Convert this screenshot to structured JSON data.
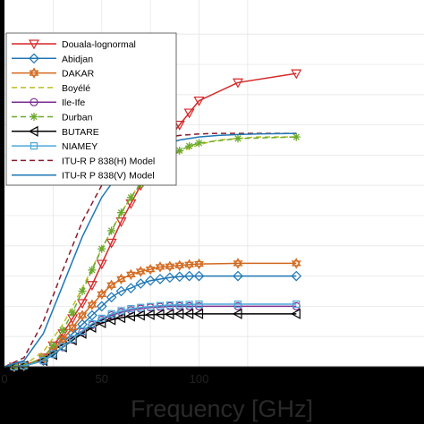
{
  "chart_data": {
    "type": "line",
    "title": "",
    "xlabel": "Frequency [GHz]",
    "ylabel": "",
    "xlim": [
      0,
      150
    ],
    "ylim": [
      0,
      11
    ],
    "x_ticks": [
      0,
      50,
      100
    ],
    "grid": true,
    "legend_position": "top-left",
    "series": [
      {
        "name": "Douala-lognormal",
        "color": "#d62728",
        "style": "solid",
        "marker": "triangle-down",
        "x": [
          5,
          10,
          20,
          25,
          30,
          35,
          40,
          45,
          50,
          55,
          60,
          65,
          70,
          75,
          80,
          85,
          90,
          95,
          100,
          120,
          150
        ],
        "y": [
          0,
          0.03,
          0.3,
          0.7,
          1.1,
          1.6,
          2.1,
          2.7,
          3.4,
          4.1,
          4.8,
          5.4,
          6.0,
          6.6,
          7.1,
          7.6,
          8.0,
          8.4,
          8.8,
          9.4,
          9.7
        ]
      },
      {
        "name": "Abidjan",
        "color": "#1f77b4",
        "style": "solid",
        "marker": "diamond",
        "x": [
          5,
          10,
          20,
          25,
          30,
          35,
          40,
          45,
          50,
          55,
          60,
          65,
          70,
          75,
          80,
          85,
          90,
          95,
          100,
          120,
          150
        ],
        "y": [
          0,
          0.03,
          0.2,
          0.5,
          0.8,
          1.1,
          1.4,
          1.7,
          2.0,
          2.3,
          2.5,
          2.6,
          2.75,
          2.85,
          2.9,
          2.95,
          2.98,
          3.0,
          3.0,
          3.0,
          3.0
        ]
      },
      {
        "name": "DAKAR",
        "color": "#d2691e",
        "style": "solid",
        "marker": "hexagram",
        "x": [
          5,
          10,
          20,
          25,
          30,
          35,
          40,
          45,
          50,
          55,
          60,
          65,
          70,
          75,
          80,
          85,
          90,
          95,
          100,
          120,
          150
        ],
        "y": [
          0,
          0.03,
          0.25,
          0.55,
          0.9,
          1.3,
          1.7,
          2.05,
          2.4,
          2.7,
          2.9,
          3.05,
          3.15,
          3.22,
          3.3,
          3.32,
          3.35,
          3.38,
          3.4,
          3.42,
          3.42
        ]
      },
      {
        "name": "Boyélé",
        "color": "#bcbd22",
        "style": "dashed",
        "marker": "none",
        "x": [
          0,
          10,
          20,
          30,
          40,
          50,
          60,
          70,
          80,
          90,
          100,
          110,
          120,
          130,
          150
        ],
        "y": [
          0,
          0.05,
          0.5,
          1.4,
          2.6,
          3.9,
          5.1,
          6.1,
          6.7,
          7.1,
          7.35,
          7.5,
          7.55,
          7.6,
          7.6
        ]
      },
      {
        "name": "Ile-Ife",
        "color": "#7b2d8e",
        "style": "solid",
        "marker": "circle",
        "x": [
          5,
          10,
          20,
          25,
          30,
          35,
          40,
          45,
          50,
          55,
          60,
          65,
          70,
          75,
          80,
          85,
          90,
          95,
          100,
          120,
          150
        ],
        "y": [
          0,
          0.03,
          0.2,
          0.42,
          0.65,
          0.9,
          1.15,
          1.38,
          1.55,
          1.7,
          1.8,
          1.87,
          1.92,
          1.96,
          1.98,
          2.0,
          2.0,
          2.0,
          2.0,
          2.0,
          2.0
        ]
      },
      {
        "name": "Durban",
        "color": "#6aaa2a",
        "style": "dashed",
        "marker": "asterisk",
        "x": [
          5,
          10,
          20,
          25,
          30,
          35,
          40,
          45,
          50,
          55,
          60,
          65,
          70,
          75,
          80,
          85,
          90,
          95,
          100,
          120,
          150
        ],
        "y": [
          0,
          0.03,
          0.3,
          0.7,
          1.2,
          1.8,
          2.5,
          3.2,
          3.9,
          4.5,
          5.1,
          5.6,
          6.05,
          6.4,
          6.7,
          6.95,
          7.15,
          7.3,
          7.4,
          7.55,
          7.6
        ]
      },
      {
        "name": "BUTARE",
        "color": "#000000",
        "style": "solid",
        "marker": "triangle-left",
        "x": [
          5,
          10,
          20,
          25,
          30,
          35,
          40,
          45,
          50,
          55,
          60,
          65,
          70,
          75,
          80,
          85,
          90,
          95,
          100,
          120,
          150
        ],
        "y": [
          0,
          0.03,
          0.2,
          0.4,
          0.65,
          0.88,
          1.1,
          1.3,
          1.45,
          1.55,
          1.62,
          1.67,
          1.7,
          1.72,
          1.73,
          1.74,
          1.75,
          1.75,
          1.75,
          1.75,
          1.75
        ]
      },
      {
        "name": "NIAMEY",
        "color": "#4aa9d8",
        "style": "solid",
        "marker": "square",
        "x": [
          5,
          10,
          20,
          25,
          30,
          35,
          40,
          45,
          50,
          55,
          60,
          65,
          70,
          75,
          80,
          85,
          90,
          95,
          100,
          120,
          150
        ],
        "y": [
          0,
          0.03,
          0.2,
          0.42,
          0.66,
          0.92,
          1.18,
          1.42,
          1.6,
          1.75,
          1.85,
          1.92,
          1.96,
          1.99,
          2.02,
          2.04,
          2.05,
          2.06,
          2.07,
          2.07,
          2.07
        ]
      },
      {
        "name": "ITU-R P 838(H) Model",
        "color": "#8b1a2b",
        "style": "dashed",
        "marker": "none",
        "x": [
          0,
          10,
          20,
          30,
          40,
          50,
          60,
          70,
          80,
          90,
          100,
          110,
          120,
          130,
          150
        ],
        "y": [
          0,
          0.3,
          1.5,
          3.2,
          4.8,
          6.0,
          6.85,
          7.3,
          7.55,
          7.65,
          7.7,
          7.72,
          7.72,
          7.72,
          7.72
        ]
      },
      {
        "name": "ITU-R P 838(V) Model",
        "color": "#1f77b4",
        "style": "solid",
        "marker": "none",
        "x": [
          0,
          10,
          20,
          30,
          40,
          50,
          60,
          70,
          80,
          90,
          100,
          110,
          120,
          130,
          150
        ],
        "y": [
          0,
          0.2,
          1.1,
          2.7,
          4.3,
          5.6,
          6.5,
          7.0,
          7.3,
          7.5,
          7.6,
          7.65,
          7.68,
          7.7,
          7.72
        ]
      }
    ]
  }
}
